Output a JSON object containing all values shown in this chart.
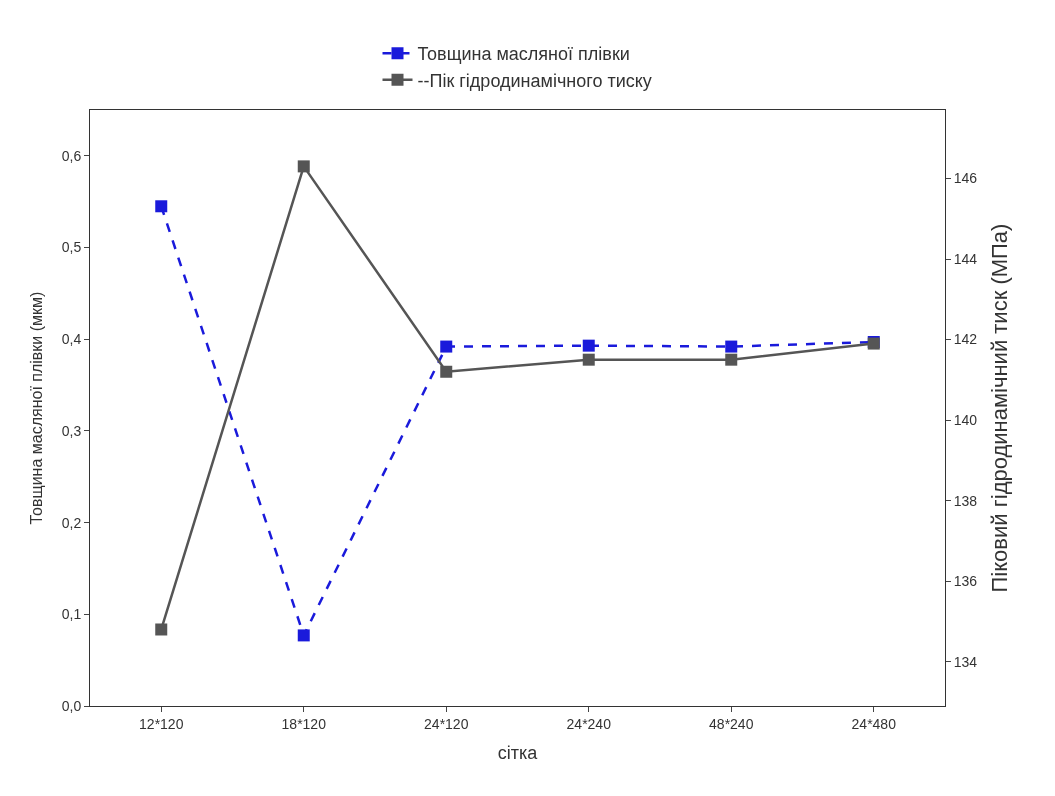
{
  "chart_data": {
    "type": "line",
    "xlabel": "сітка",
    "ylabel": "Товщина масляної плівки (мкм)",
    "y2label": "Піковий гідродинамічний тиск (МПа)",
    "categories": [
      "12*120",
      "18*120",
      "24*120",
      "24*240",
      "48*240",
      "24*480"
    ],
    "series": [
      {
        "name": "Товщина масляної плівки",
        "color": "#1a1adb",
        "line_style": "dashed",
        "values": [
          0.545,
          0.077,
          0.392,
          0.393,
          0.392,
          0.397
        ]
      },
      {
        "name": "--Пік гідродинамічного тиску",
        "color": "#555555",
        "line_style": "solid",
        "axis": "y2",
        "values": [
          134.8,
          146.3,
          141.2,
          141.5,
          141.5,
          141.9
        ]
      }
    ],
    "ylim": [
      0,
      0.65
    ],
    "yticks": [
      {
        "value": 0,
        "label": "0,0"
      },
      {
        "value": 0.1,
        "label": "0,1"
      },
      {
        "value": 0.2,
        "label": "0,2"
      },
      {
        "value": 0.3,
        "label": "0,3"
      },
      {
        "value": 0.4,
        "label": "0,4"
      },
      {
        "value": 0.5,
        "label": "0,5"
      },
      {
        "value": 0.6,
        "label": "0,6"
      }
    ],
    "y2lim": [
      132.9,
      147.7
    ],
    "y2ticks": [
      134,
      136,
      138,
      140,
      142,
      144,
      146
    ],
    "marker": "square",
    "legend": "top"
  }
}
